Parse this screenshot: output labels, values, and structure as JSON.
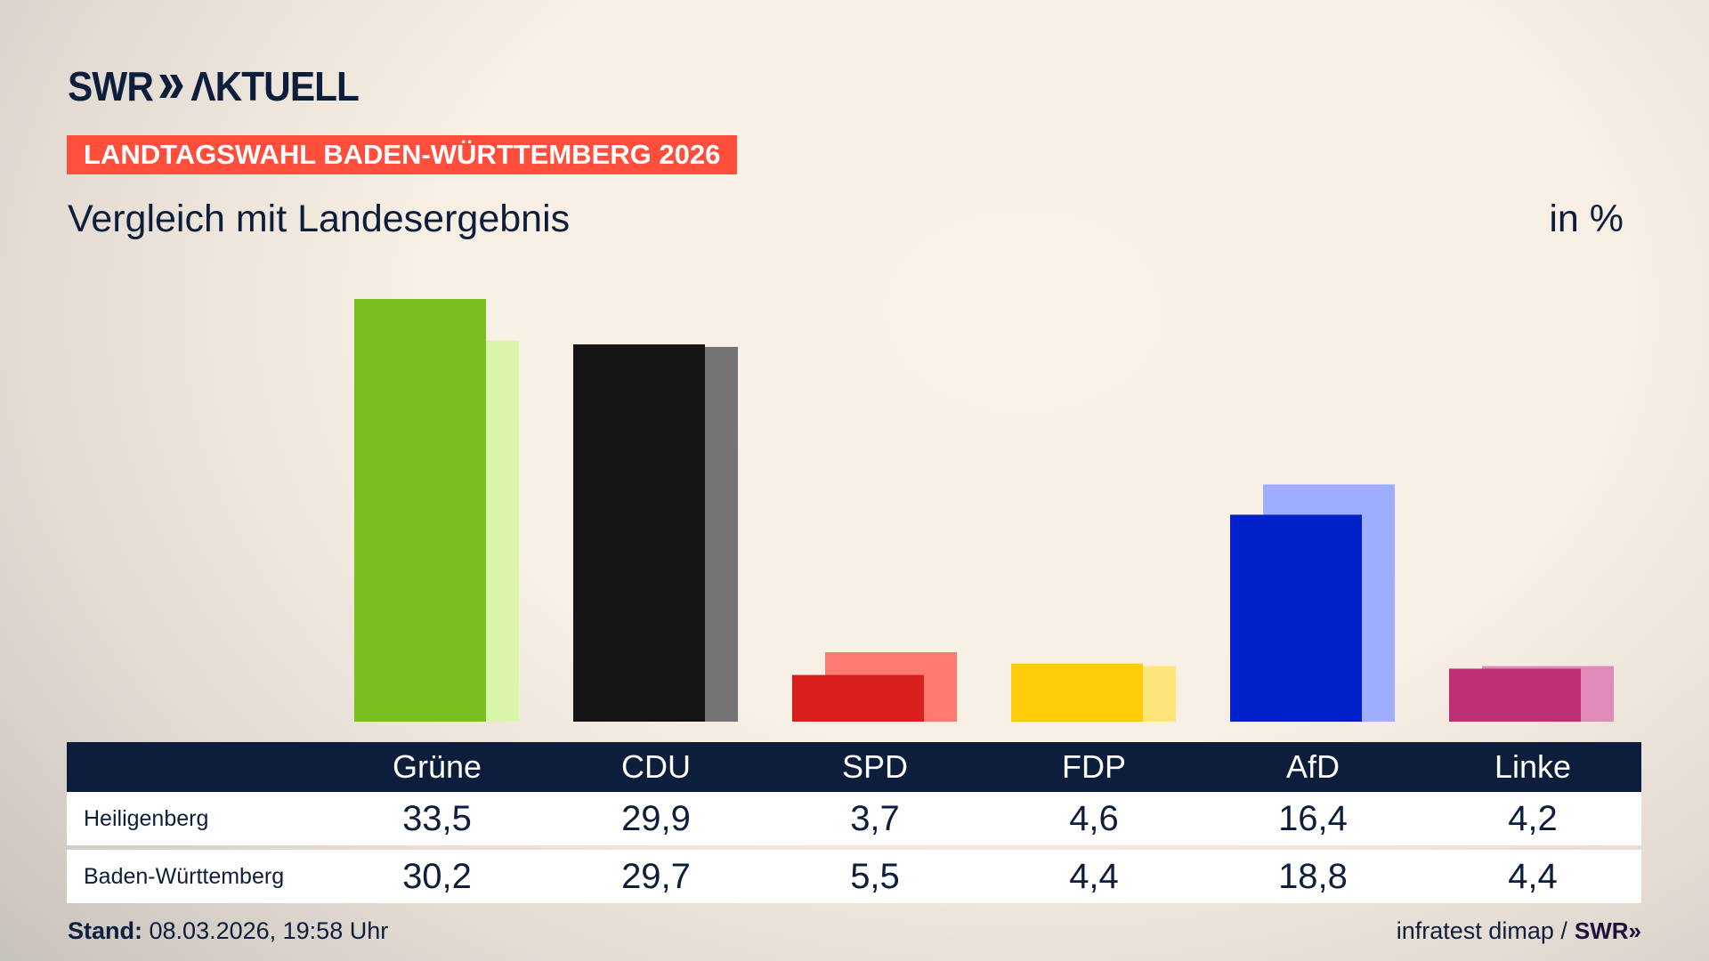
{
  "header": {
    "logo": "SWR AKTUELL",
    "banner": "LANDTAGSWAHL BADEN-WÜRTTEMBERG 2026",
    "subtitle": "Vergleich mit Landesergebnis",
    "unit": "in %"
  },
  "chart_data": {
    "type": "bar",
    "title": "Vergleich mit Landesergebnis",
    "ylabel": "in %",
    "ylim": [
      0,
      35
    ],
    "grid": false,
    "categories": [
      "Grüne",
      "CDU",
      "SPD",
      "FDP",
      "AfD",
      "Linke"
    ],
    "series": [
      {
        "name": "Heiligenberg",
        "values": [
          33.5,
          29.9,
          3.7,
          4.6,
          16.4,
          4.2
        ]
      },
      {
        "name": "Baden-Württemberg",
        "values": [
          30.2,
          29.7,
          5.5,
          4.4,
          18.8,
          4.4
        ]
      }
    ],
    "colors": {
      "main": [
        "#78be1e",
        "#141414",
        "#d91e1e",
        "#ffcc0a",
        "#0021c9",
        "#bd3075"
      ],
      "light": [
        "#d8f5aa",
        "#737373",
        "#ff7b72",
        "#ffe47a",
        "#9eadff",
        "#df8ab7"
      ]
    }
  },
  "table": {
    "headers": [
      "Grüne",
      "CDU",
      "SPD",
      "FDP",
      "AfD",
      "Linke"
    ],
    "rows": [
      {
        "label": "Heiligenberg",
        "values": [
          "33,5",
          "29,9",
          "3,7",
          "4,6",
          "16,4",
          "4,2"
        ]
      },
      {
        "label": "Baden-Württemberg",
        "values": [
          "30,2",
          "29,7",
          "5,5",
          "4,4",
          "18,8",
          "4,4"
        ]
      }
    ]
  },
  "footer": {
    "stand_label": "Stand:",
    "stand_value": "08.03.2026, 19:58 Uhr",
    "source": "infratest dimap /",
    "source_logo": "SWR"
  },
  "colors": {
    "navy": "#0c1e3c",
    "banner": "#ff4e3c"
  }
}
